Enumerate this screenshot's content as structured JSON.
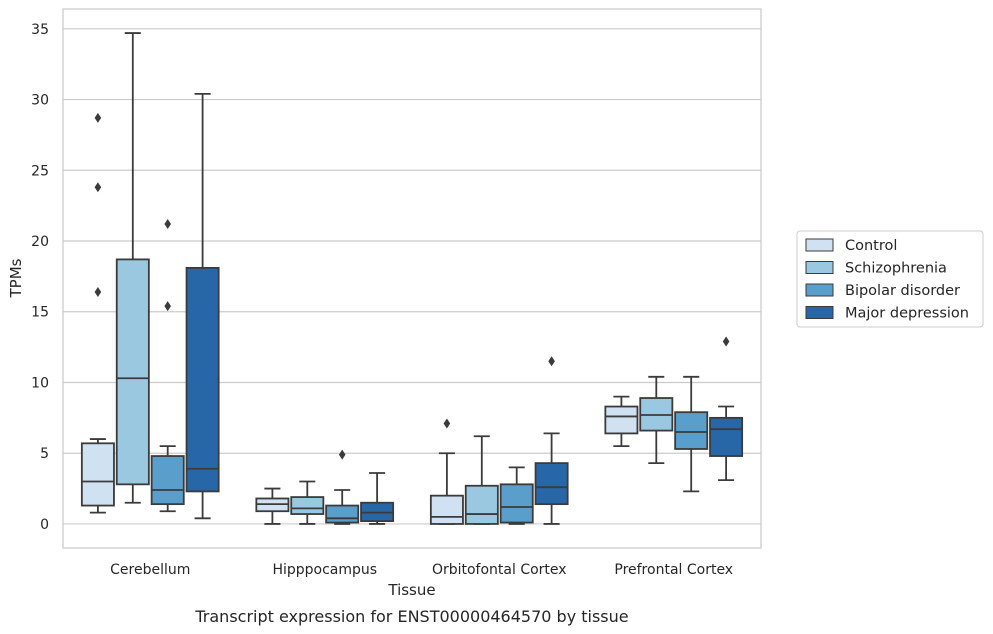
{
  "chart_data": {
    "type": "box",
    "title": "",
    "caption": "Transcript expression for ENST00000464570 by tissue",
    "xlabel": "Tissue",
    "ylabel": "TPMs",
    "ylim": [
      -1.7,
      36.4
    ],
    "yticks": [
      0,
      5,
      10,
      15,
      20,
      25,
      30,
      35
    ],
    "grid": "horizontal",
    "legend_position": "right",
    "categories": [
      "Cerebellum",
      "Hipppocampus",
      "Orbitofontal Cortex",
      "Prefrontal Cortex"
    ],
    "series": [
      {
        "name": "Control",
        "color": "#d0e1f2",
        "boxes": [
          {
            "whisker_low": 0.8,
            "q1": 1.3,
            "median": 3.0,
            "q3": 5.7,
            "whisker_high": 6.0,
            "outliers": [
              16.4,
              23.8,
              28.7
            ]
          },
          {
            "whisker_low": 0.0,
            "q1": 0.9,
            "median": 1.4,
            "q3": 1.8,
            "whisker_high": 2.5,
            "outliers": []
          },
          {
            "whisker_low": 0.0,
            "q1": 0.0,
            "median": 0.5,
            "q3": 2.0,
            "whisker_high": 5.0,
            "outliers": [
              7.1
            ]
          },
          {
            "whisker_low": 5.5,
            "q1": 6.4,
            "median": 7.6,
            "q3": 8.3,
            "whisker_high": 9.0,
            "outliers": []
          }
        ]
      },
      {
        "name": "Schizophrenia",
        "color": "#9ac8e0",
        "boxes": [
          {
            "whisker_low": 1.5,
            "q1": 2.8,
            "median": 10.3,
            "q3": 18.7,
            "whisker_high": 34.7,
            "outliers": []
          },
          {
            "whisker_low": 0.0,
            "q1": 0.7,
            "median": 1.1,
            "q3": 1.9,
            "whisker_high": 3.0,
            "outliers": []
          },
          {
            "whisker_low": 0.0,
            "q1": 0.0,
            "median": 0.7,
            "q3": 2.7,
            "whisker_high": 6.2,
            "outliers": []
          },
          {
            "whisker_low": 4.3,
            "q1": 6.6,
            "median": 7.7,
            "q3": 8.9,
            "whisker_high": 10.4,
            "outliers": []
          }
        ]
      },
      {
        "name": "Bipolar disorder",
        "color": "#5a9ecb",
        "boxes": [
          {
            "whisker_low": 0.9,
            "q1": 1.4,
            "median": 2.4,
            "q3": 4.8,
            "whisker_high": 5.5,
            "outliers": [
              15.4,
              21.2
            ]
          },
          {
            "whisker_low": 0.0,
            "q1": 0.1,
            "median": 0.4,
            "q3": 1.3,
            "whisker_high": 2.4,
            "outliers": [
              4.9
            ]
          },
          {
            "whisker_low": 0.0,
            "q1": 0.1,
            "median": 1.2,
            "q3": 2.8,
            "whisker_high": 4.0,
            "outliers": []
          },
          {
            "whisker_low": 2.3,
            "q1": 5.3,
            "median": 6.5,
            "q3": 7.9,
            "whisker_high": 10.4,
            "outliers": []
          }
        ]
      },
      {
        "name": "Major depression",
        "color": "#2767a8",
        "boxes": [
          {
            "whisker_low": 0.4,
            "q1": 2.3,
            "median": 3.9,
            "q3": 18.1,
            "whisker_high": 30.4,
            "outliers": []
          },
          {
            "whisker_low": 0.0,
            "q1": 0.2,
            "median": 0.8,
            "q3": 1.5,
            "whisker_high": 3.6,
            "outliers": []
          },
          {
            "whisker_low": 0.0,
            "q1": 1.4,
            "median": 2.6,
            "q3": 4.3,
            "whisker_high": 6.4,
            "outliers": [
              11.5
            ]
          },
          {
            "whisker_low": 3.1,
            "q1": 4.8,
            "median": 6.7,
            "q3": 7.5,
            "whisker_high": 8.3,
            "outliers": [
              12.9
            ]
          }
        ]
      }
    ]
  }
}
